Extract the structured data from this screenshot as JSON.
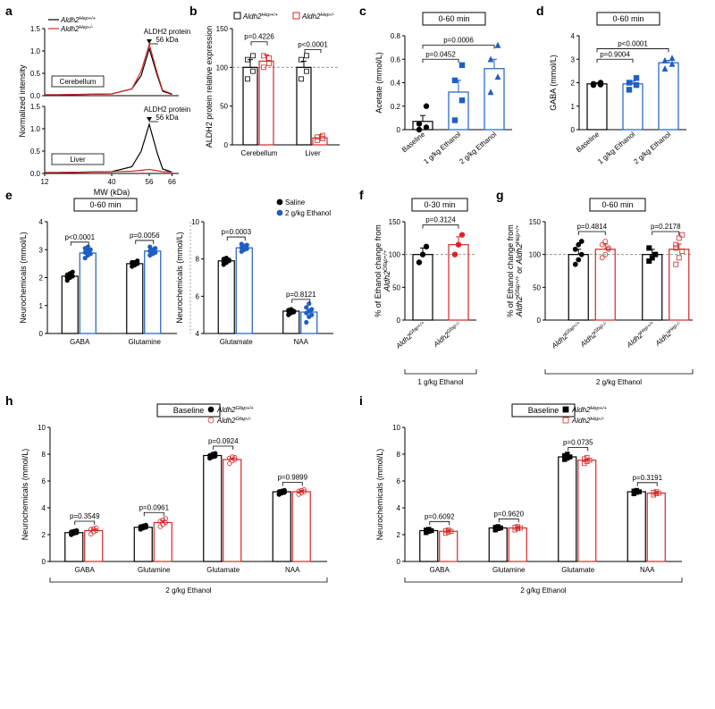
{
  "panel_a": {
    "label": "a",
    "y_label": "Normalized intensity",
    "x_label": "MW (kDa)",
    "x_ticks": [
      12,
      40,
      56,
      66
    ],
    "x_tick_positions": [
      0,
      0.5,
      0.78,
      0.95
    ],
    "y_ticks": [
      0,
      0.5,
      1.0,
      1.5
    ],
    "legend": [
      "Aldh2^Hep+/+",
      "Aldh2^Hep-/-"
    ],
    "legend_colors": [
      "#000000",
      "#d62728"
    ],
    "peak_label": "ALDH2 protein 56 kDa",
    "regions": [
      "Cerebellum",
      "Liver"
    ],
    "cerebellum_black": [
      [
        0,
        0.02
      ],
      [
        0.1,
        0.02
      ],
      [
        0.3,
        0.03
      ],
      [
        0.5,
        0.04
      ],
      [
        0.65,
        0.15
      ],
      [
        0.72,
        0.45
      ],
      [
        0.78,
        1.05
      ],
      [
        0.84,
        0.45
      ],
      [
        0.88,
        0.1
      ],
      [
        0.95,
        0.03
      ]
    ],
    "cerebellum_red": [
      [
        0,
        0.02
      ],
      [
        0.1,
        0.02
      ],
      [
        0.3,
        0.03
      ],
      [
        0.5,
        0.04
      ],
      [
        0.65,
        0.15
      ],
      [
        0.72,
        0.55
      ],
      [
        0.78,
        1.15
      ],
      [
        0.84,
        0.5
      ],
      [
        0.88,
        0.12
      ],
      [
        0.95,
        0.04
      ]
    ],
    "liver_black": [
      [
        0,
        0.02
      ],
      [
        0.1,
        0.02
      ],
      [
        0.3,
        0.03
      ],
      [
        0.5,
        0.04
      ],
      [
        0.65,
        0.15
      ],
      [
        0.72,
        0.5
      ],
      [
        0.78,
        1.1
      ],
      [
        0.84,
        0.45
      ],
      [
        0.88,
        0.1
      ],
      [
        0.95,
        0.03
      ]
    ],
    "liver_red": [
      [
        0,
        0.02
      ],
      [
        0.1,
        0.02
      ],
      [
        0.3,
        0.03
      ],
      [
        0.5,
        0.04
      ],
      [
        0.65,
        0.05
      ],
      [
        0.72,
        0.07
      ],
      [
        0.78,
        0.09
      ],
      [
        0.84,
        0.06
      ],
      [
        0.88,
        0.04
      ],
      [
        0.95,
        0.03
      ]
    ]
  },
  "panel_b": {
    "label": "b",
    "title_box": null,
    "y_label": "ALDH2 protein relative expression",
    "legend": [
      "Aldh2^Hep+/+",
      "Aldh2^Hep-/-"
    ],
    "legend_colors": [
      "#000000",
      "#d62728"
    ],
    "categories": [
      "Cerebellum",
      "Liver"
    ],
    "values": [
      [
        100,
        108
      ],
      [
        100,
        9
      ]
    ],
    "errors": [
      [
        10,
        8
      ],
      [
        8,
        4
      ]
    ],
    "points": [
      [
        [
          85,
          95,
          110,
          115
        ],
        [
          100,
          105,
          115,
          112
        ]
      ],
      [
        [
          85,
          95,
          110,
          115
        ],
        [
          6,
          8,
          10,
          12
        ]
      ]
    ],
    "pvals": [
      "p=0.4226",
      "p<0.0001"
    ],
    "ylim": [
      0,
      150
    ],
    "yticks": [
      0,
      50,
      100,
      150
    ],
    "dashed_ref": 100
  },
  "panel_c": {
    "label": "c",
    "title_box": "0-60 min",
    "y_label": "Acetate (mmol/L)",
    "categories": [
      "Baseline",
      "1 g/kg Ethanol",
      "2 g/kg Ethanol"
    ],
    "values": [
      0.07,
      0.32,
      0.52
    ],
    "errors": [
      0.05,
      0.1,
      0.08
    ],
    "colors": [
      "#000000",
      "#1f5fc4",
      "#1f5fc4"
    ],
    "points": [
      [
        0.0,
        0.02,
        0.05,
        0.2
      ],
      [
        0.08,
        0.25,
        0.42,
        0.55
      ],
      [
        0.32,
        0.45,
        0.6,
        0.72
      ]
    ],
    "markers": [
      "circle",
      "square",
      "triangle"
    ],
    "ylim": [
      0,
      0.8
    ],
    "yticks": [
      0,
      0.2,
      0.4,
      0.6,
      0.8
    ],
    "pvals": [
      {
        "from": 0,
        "to": 1,
        "label": "p=0.0452",
        "h": 0.6
      },
      {
        "from": 0,
        "to": 2,
        "label": "p=0.0006",
        "h": 0.72
      }
    ]
  },
  "panel_d": {
    "label": "d",
    "title_box": "0-60 min",
    "y_label": "GABA (mmol/L)",
    "categories": [
      "Baseline",
      "1 g/kg Ethanol",
      "2 g/kg Ethanol"
    ],
    "values": [
      1.95,
      1.95,
      2.85
    ],
    "errors": [
      0.05,
      0.12,
      0.1
    ],
    "colors": [
      "#000000",
      "#1f5fc4",
      "#1f5fc4"
    ],
    "points": [
      [
        1.9,
        1.92,
        1.95,
        2.0
      ],
      [
        1.7,
        1.9,
        2.0,
        2.2
      ],
      [
        2.6,
        2.8,
        2.95,
        3.05
      ]
    ],
    "markers": [
      "circle",
      "square",
      "triangle"
    ],
    "ylim": [
      0,
      4
    ],
    "yticks": [
      0,
      1,
      2,
      3,
      4
    ],
    "pvals": [
      {
        "from": 0,
        "to": 1,
        "label": "p=0.9004",
        "h": 3.0
      },
      {
        "from": 0,
        "to": 2,
        "label": "p<0.0001",
        "h": 3.45
      }
    ]
  },
  "panel_e": {
    "label": "e",
    "title_box": "0-60 min",
    "legend": [
      "Saline",
      "2 g/kg Ethanol"
    ],
    "legend_colors": [
      "#000000",
      "#1f5fc4"
    ],
    "y_label_left": "Neurochemicals (mmol/L)",
    "y_label_right": "Neurochemicals (mmol/L)",
    "left_categories": [
      "GABA",
      "Glutamine"
    ],
    "left_values": [
      [
        2.05,
        2.88
      ],
      [
        2.5,
        2.95
      ]
    ],
    "left_errors": [
      [
        0.07,
        0.07
      ],
      [
        0.06,
        0.06
      ]
    ],
    "left_points": [
      [
        [
          1.9,
          2.0,
          2.05,
          2.1,
          2.15,
          2.2,
          2.0,
          2.1
        ],
        [
          2.7,
          2.8,
          2.85,
          2.9,
          2.95,
          3.0,
          3.05,
          3.1
        ]
      ],
      [
        [
          2.4,
          2.45,
          2.5,
          2.55,
          2.55,
          2.6,
          2.5,
          2.45
        ],
        [
          2.8,
          2.85,
          2.9,
          2.95,
          3.0,
          3.05,
          3.1,
          2.9
        ]
      ]
    ],
    "left_pvals": [
      "p<0.0001",
      "p=0.0056"
    ],
    "left_ylim": [
      0,
      4
    ],
    "left_yticks": [
      0,
      1,
      2,
      3,
      4
    ],
    "right_categories": [
      "Glutamate",
      "NAA"
    ],
    "right_values": [
      [
        7.9,
        8.6
      ],
      [
        5.2,
        5.15
      ]
    ],
    "right_errors": [
      [
        0.1,
        0.1
      ],
      [
        0.1,
        0.15
      ]
    ],
    "right_points": [
      [
        [
          7.7,
          7.8,
          7.9,
          8.0,
          8.05,
          7.95,
          7.85,
          8.0
        ],
        [
          8.4,
          8.5,
          8.55,
          8.6,
          8.7,
          8.75,
          8.8,
          8.6
        ]
      ],
      [
        [
          5.0,
          5.1,
          5.2,
          5.25,
          5.3,
          5.15,
          5.2,
          5.25
        ],
        [
          4.6,
          4.9,
          5.0,
          5.1,
          5.2,
          5.3,
          5.4,
          5.6
        ]
      ]
    ],
    "right_pvals": [
      "p=0.0003",
      "p=0.8121"
    ],
    "right_ylim": [
      4,
      10
    ],
    "right_yticks": [
      4,
      6,
      8,
      10
    ]
  },
  "panel_f": {
    "label": "f",
    "title_box": "0-30 min",
    "y_label": "% of Ethanol change from Aldh2^Gfap+/+",
    "categories": [
      "Aldh2^Gfap+/+",
      "Aldh2^Gfap-/-"
    ],
    "colors": [
      "#000000",
      "#d62728"
    ],
    "values": [
      100,
      115
    ],
    "errors": [
      10,
      12
    ],
    "points": [
      [
        88,
        100,
        112
      ],
      [
        100,
        115,
        130
      ]
    ],
    "footer": "1 g/kg Ethanol",
    "pvals": [
      {
        "from": 0,
        "to": 1,
        "label": "p=0.3124",
        "h": 145
      }
    ],
    "ylim": [
      0,
      150
    ],
    "yticks": [
      0,
      50,
      100,
      150
    ],
    "dashed_ref": 100
  },
  "panel_g": {
    "label": "g",
    "title_box": "0-60 min",
    "y_label": "% of Ethanol change from Aldh2^Gfap+/+ or Aldh2^Hep+/+",
    "groups": [
      {
        "categories": [
          "Aldh2^Gfap+/+",
          "Aldh2^Gfap-/-"
        ],
        "colors": [
          "#000000",
          "#d62728"
        ],
        "markers": [
          "circle",
          "circle"
        ],
        "values": [
          100,
          108
        ],
        "errors": [
          8,
          8
        ],
        "points": [
          [
            85,
            92,
            100,
            108,
            115,
            120
          ],
          [
            95,
            100,
            108,
            115,
            120,
            110
          ]
        ],
        "pval": "p=0.4814"
      },
      {
        "categories": [
          "Aldh2^Hep+/+",
          "Aldh2^Hep-/-"
        ],
        "colors": [
          "#000000",
          "#d62728"
        ],
        "markers": [
          "square",
          "square"
        ],
        "values": [
          100,
          108
        ],
        "errors": [
          8,
          8
        ],
        "points": [
          [
            90,
            95,
            100,
            110
          ],
          [
            85,
            95,
            105,
            115,
            125,
            130,
            110
          ]
        ],
        "pval": "p=0.2178"
      }
    ],
    "footer": "2 g/kg Ethanol",
    "ylim": [
      0,
      150
    ],
    "yticks": [
      0,
      50,
      100,
      150
    ],
    "dashed_ref": 100
  },
  "panel_h": {
    "label": "h",
    "title_box": "Baseline",
    "legend": [
      "Aldh2^Gfap+/+",
      "Aldh2^Gfap-/-"
    ],
    "legend_colors": [
      "#000000",
      "#d62728"
    ],
    "y_label": "Neurochemicals (mmol/L)",
    "categories": [
      "GABA",
      "Glutamine",
      "Glutamate",
      "NAA"
    ],
    "values": [
      [
        2.15,
        2.3
      ],
      [
        2.55,
        2.9
      ],
      [
        7.9,
        7.6
      ],
      [
        5.2,
        5.2
      ]
    ],
    "errors": [
      [
        0.08,
        0.1
      ],
      [
        0.08,
        0.15
      ],
      [
        0.1,
        0.1
      ],
      [
        0.08,
        0.1
      ]
    ],
    "points": [
      [
        [
          2.0,
          2.1,
          2.15,
          2.2,
          2.25,
          2.3
        ],
        [
          2.05,
          2.2,
          2.3,
          2.4,
          2.45,
          2.5
        ]
      ],
      [
        [
          2.4,
          2.5,
          2.55,
          2.6,
          2.65,
          2.7
        ],
        [
          2.6,
          2.75,
          2.9,
          3.0,
          3.1,
          3.2
        ]
      ],
      [
        [
          7.7,
          7.8,
          7.85,
          7.9,
          8.0,
          8.05
        ],
        [
          7.3,
          7.5,
          7.6,
          7.7,
          7.8,
          7.75
        ]
      ],
      [
        [
          5.0,
          5.1,
          5.15,
          5.2,
          5.25,
          5.3
        ],
        [
          5.0,
          5.1,
          5.2,
          5.25,
          5.3,
          5.35
        ]
      ]
    ],
    "pvals": [
      "p=0.3549",
      "p=0.0961",
      "p=0.0924",
      "p=0.9899"
    ],
    "footer": "2 g/kg Ethanol",
    "ylim": [
      0,
      10
    ],
    "yticks": [
      0,
      2,
      4,
      6,
      8,
      10
    ]
  },
  "panel_i": {
    "label": "i",
    "title_box": "Baseline",
    "legend": [
      "Aldh2^Hep+/+",
      "Aldh2^Hep-/-"
    ],
    "legend_colors": [
      "#000000",
      "#d62728"
    ],
    "y_label": "Neurochemicals (mmol/L)",
    "categories": [
      "GABA",
      "Glutamine",
      "Glutamate",
      "NAA"
    ],
    "values": [
      [
        2.3,
        2.25
      ],
      [
        2.5,
        2.5
      ],
      [
        7.8,
        7.55
      ],
      [
        5.2,
        5.1
      ]
    ],
    "errors": [
      [
        0.08,
        0.08
      ],
      [
        0.08,
        0.08
      ],
      [
        0.1,
        0.1
      ],
      [
        0.08,
        0.08
      ]
    ],
    "points": [
      [
        [
          2.15,
          2.25,
          2.3,
          2.35,
          2.4
        ],
        [
          2.1,
          2.2,
          2.25,
          2.3,
          2.35
        ]
      ],
      [
        [
          2.35,
          2.45,
          2.5,
          2.55,
          2.6
        ],
        [
          2.35,
          2.45,
          2.5,
          2.55,
          2.6
        ]
      ],
      [
        [
          7.6,
          7.7,
          7.8,
          7.9,
          8.0
        ],
        [
          7.3,
          7.45,
          7.55,
          7.65,
          7.75
        ]
      ],
      [
        [
          5.05,
          5.15,
          5.2,
          5.25,
          5.3
        ],
        [
          4.95,
          5.05,
          5.1,
          5.15,
          5.2
        ]
      ]
    ],
    "pvals": [
      "p=0.6092",
      "p=0.9620",
      "p=0.0735",
      "p=0.3191"
    ],
    "footer": "2 g/kg Ethanol",
    "ylim": [
      0,
      10
    ],
    "yticks": [
      0,
      2,
      4,
      6,
      8,
      10
    ]
  }
}
